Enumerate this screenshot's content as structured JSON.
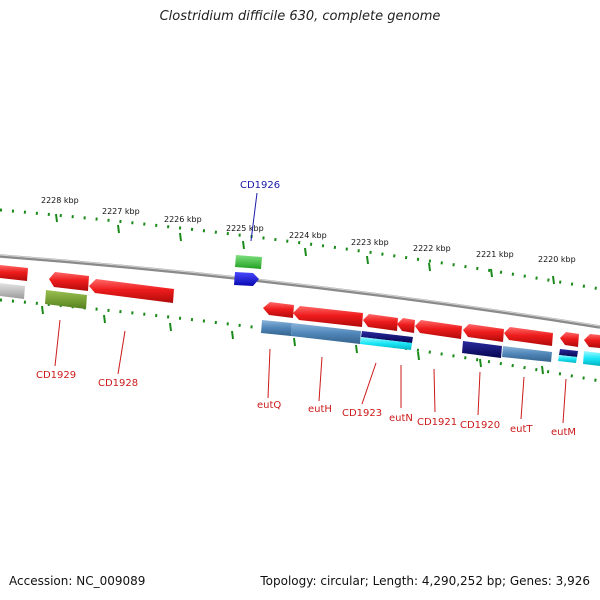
{
  "title": "Clostridium difficile 630, complete genome",
  "accession_text": "Accession: NC_009089",
  "topology_text": "Topology: circular; Length: 4,290,252 bp; Genes: 3,926",
  "kbp_labels": [
    "2228 kbp",
    "2227 kbp",
    "2226 kbp",
    "2225 kbp",
    "2224 kbp",
    "2223 kbp",
    "2222 kbp",
    "2221 kbp",
    "2220 kbp"
  ],
  "gene_labels_above": [
    {
      "text": "CD1926",
      "color": "#1a1aa8"
    }
  ],
  "gene_labels_below": [
    {
      "text": "CD1929",
      "color": "#cc1a1a"
    },
    {
      "text": "CD1928",
      "color": "#cc1a1a"
    },
    {
      "text": "eutQ",
      "color": "#cc1a1a"
    },
    {
      "text": "eutH",
      "color": "#cc1a1a"
    },
    {
      "text": "CD1923",
      "color": "#cc1a1a"
    },
    {
      "text": "eutN",
      "color": "#cc1a1a"
    },
    {
      "text": "CD1921",
      "color": "#cc1a1a"
    },
    {
      "text": "CD1920",
      "color": "#cc1a1a"
    },
    {
      "text": "eutT",
      "color": "#cc1a1a"
    },
    {
      "text": "eutM",
      "color": "#cc1a1a"
    }
  ],
  "colors": {
    "cds": "#e81818",
    "blast_blue": "#4f86b8",
    "navy": "#0a0a70",
    "cyan": "#10e0f0",
    "green": "#30c030",
    "olive": "#6a9a28",
    "gray": "#b4b4b4",
    "ticks": "#1a8a1a",
    "backbone": "#808080"
  }
}
